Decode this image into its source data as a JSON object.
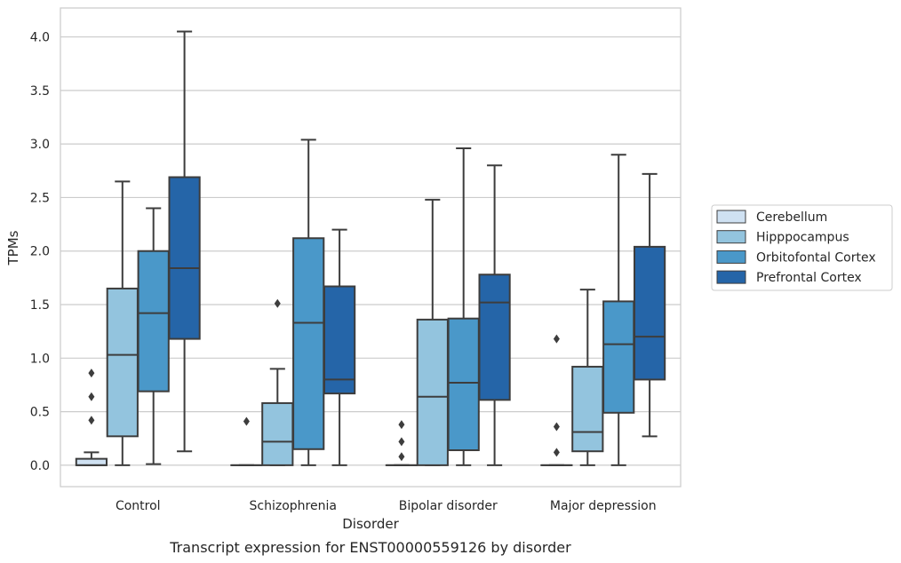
{
  "chart_data": {
    "type": "box",
    "caption": "Transcript expression for ENST00000559126 by disorder",
    "xlabel": "Disorder",
    "ylabel": "TPMs",
    "ylim": [
      -0.2,
      4.27
    ],
    "yticks": [
      "0.0",
      "0.5",
      "1.0",
      "1.5",
      "2.0",
      "2.5",
      "3.0",
      "3.5",
      "4.0"
    ],
    "ytick_values": [
      0,
      0.5,
      1.0,
      1.5,
      2.0,
      2.5,
      3.0,
      3.5,
      4.0
    ],
    "grid": true,
    "legend_position": "right",
    "categories": [
      "Control",
      "Schizophrenia",
      "Bipolar disorder",
      "Major depression"
    ],
    "series": [
      {
        "name": "Cerebellum",
        "color": "#cfe1f2",
        "boxes": [
          {
            "whislo": 0,
            "q1": 0,
            "med": 0,
            "q3": 0.06,
            "whishi": 0.12,
            "fliers": [
              0.42,
              0.64,
              0.86
            ]
          },
          {
            "whislo": 0,
            "q1": 0,
            "med": 0,
            "q3": 0,
            "whishi": 0,
            "fliers": [
              0.41
            ]
          },
          {
            "whislo": 0,
            "q1": 0,
            "med": 0,
            "q3": 0,
            "whishi": 0,
            "fliers": [
              0.08,
              0.22,
              0.38
            ]
          },
          {
            "whislo": 0,
            "q1": 0,
            "med": 0,
            "q3": 0,
            "whishi": 0,
            "fliers": [
              0.12,
              0.36,
              1.18
            ]
          }
        ]
      },
      {
        "name": "Hipppocampus",
        "color": "#93c4de",
        "boxes": [
          {
            "whislo": 0,
            "q1": 0.27,
            "med": 1.03,
            "q3": 1.65,
            "whishi": 2.65,
            "fliers": []
          },
          {
            "whislo": 0,
            "q1": 0,
            "med": 0.22,
            "q3": 0.58,
            "whishi": 0.9,
            "fliers": [
              1.51
            ]
          },
          {
            "whislo": 0,
            "q1": 0,
            "med": 0.64,
            "q3": 1.36,
            "whishi": 2.48,
            "fliers": []
          },
          {
            "whislo": 0,
            "q1": 0.13,
            "med": 0.31,
            "q3": 0.92,
            "whishi": 1.64,
            "fliers": []
          }
        ]
      },
      {
        "name": "Orbitofontal Cortex",
        "color": "#4a98c9",
        "boxes": [
          {
            "whislo": 0.01,
            "q1": 0.69,
            "med": 1.42,
            "q3": 2.0,
            "whishi": 2.4,
            "fliers": []
          },
          {
            "whislo": 0,
            "q1": 0.15,
            "med": 1.33,
            "q3": 2.12,
            "whishi": 3.04,
            "fliers": []
          },
          {
            "whislo": 0,
            "q1": 0.14,
            "med": 0.77,
            "q3": 1.37,
            "whishi": 2.96,
            "fliers": []
          },
          {
            "whislo": 0,
            "q1": 0.49,
            "med": 1.13,
            "q3": 1.53,
            "whishi": 2.9,
            "fliers": []
          }
        ]
      },
      {
        "name": "Prefrontal Cortex",
        "color": "#2565a8",
        "boxes": [
          {
            "whislo": 0.13,
            "q1": 1.18,
            "med": 1.84,
            "q3": 2.69,
            "whishi": 4.05,
            "fliers": []
          },
          {
            "whislo": 0,
            "q1": 0.67,
            "med": 0.8,
            "q3": 1.67,
            "whishi": 2.2,
            "fliers": []
          },
          {
            "whislo": 0,
            "q1": 0.61,
            "med": 1.52,
            "q3": 1.78,
            "whishi": 2.8,
            "fliers": []
          },
          {
            "whislo": 0.27,
            "q1": 0.8,
            "med": 1.2,
            "q3": 2.04,
            "whishi": 2.72,
            "fliers": []
          }
        ]
      }
    ]
  }
}
